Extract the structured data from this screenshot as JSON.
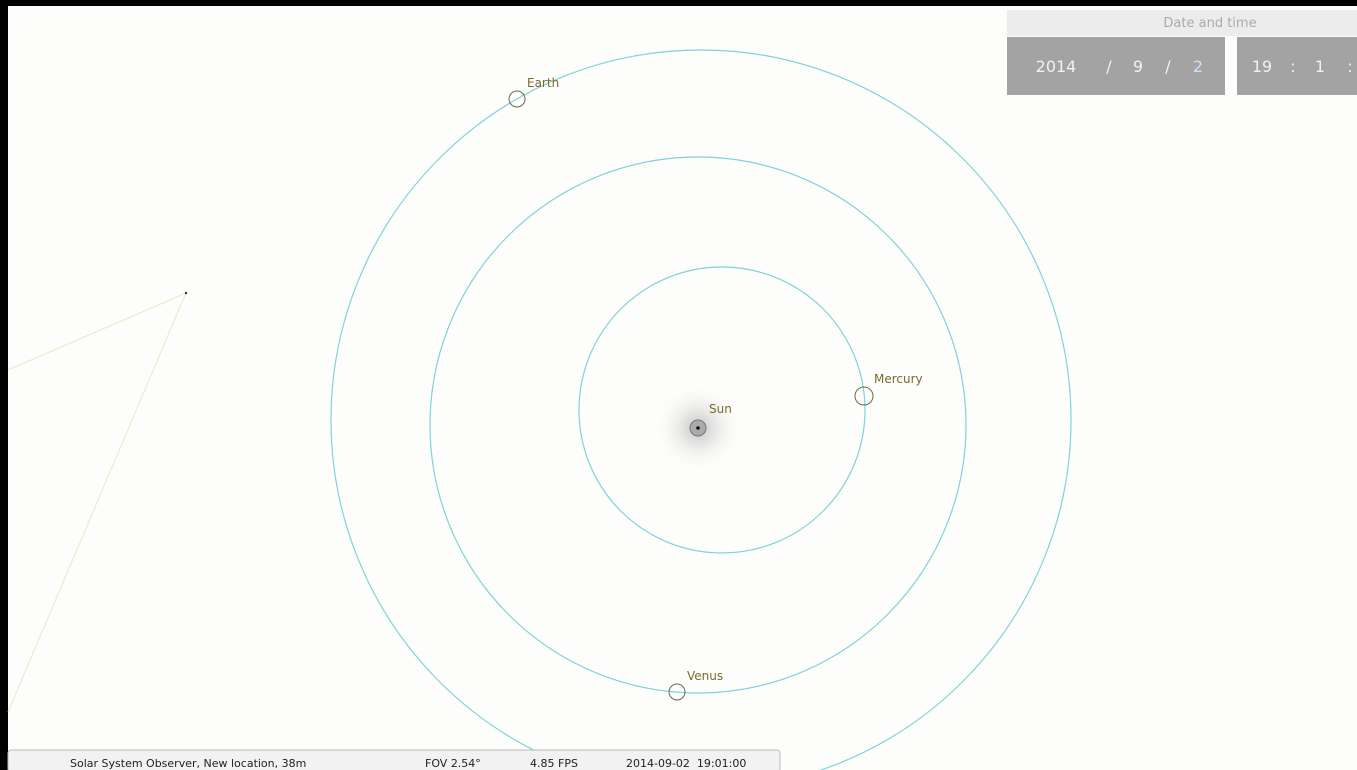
{
  "sky": {
    "bodies": [
      {
        "name": "Earth"
      },
      {
        "name": "Mercury"
      },
      {
        "name": "Sun"
      },
      {
        "name": "Venus"
      }
    ]
  },
  "date_time_panel": {
    "title": "Date and time",
    "date": {
      "year": "2014",
      "sep1": "/",
      "month": "9",
      "sep2": "/",
      "day": "2"
    },
    "time": {
      "hour": "19",
      "sep1": ":",
      "minute": "1",
      "sep2": ":"
    }
  },
  "status_bar": {
    "location": "Solar System Observer, New location, 38m",
    "fov": "FOV 2.54°",
    "fps": "4.85 FPS",
    "datetime": "2014-09-02  19:01:00"
  }
}
